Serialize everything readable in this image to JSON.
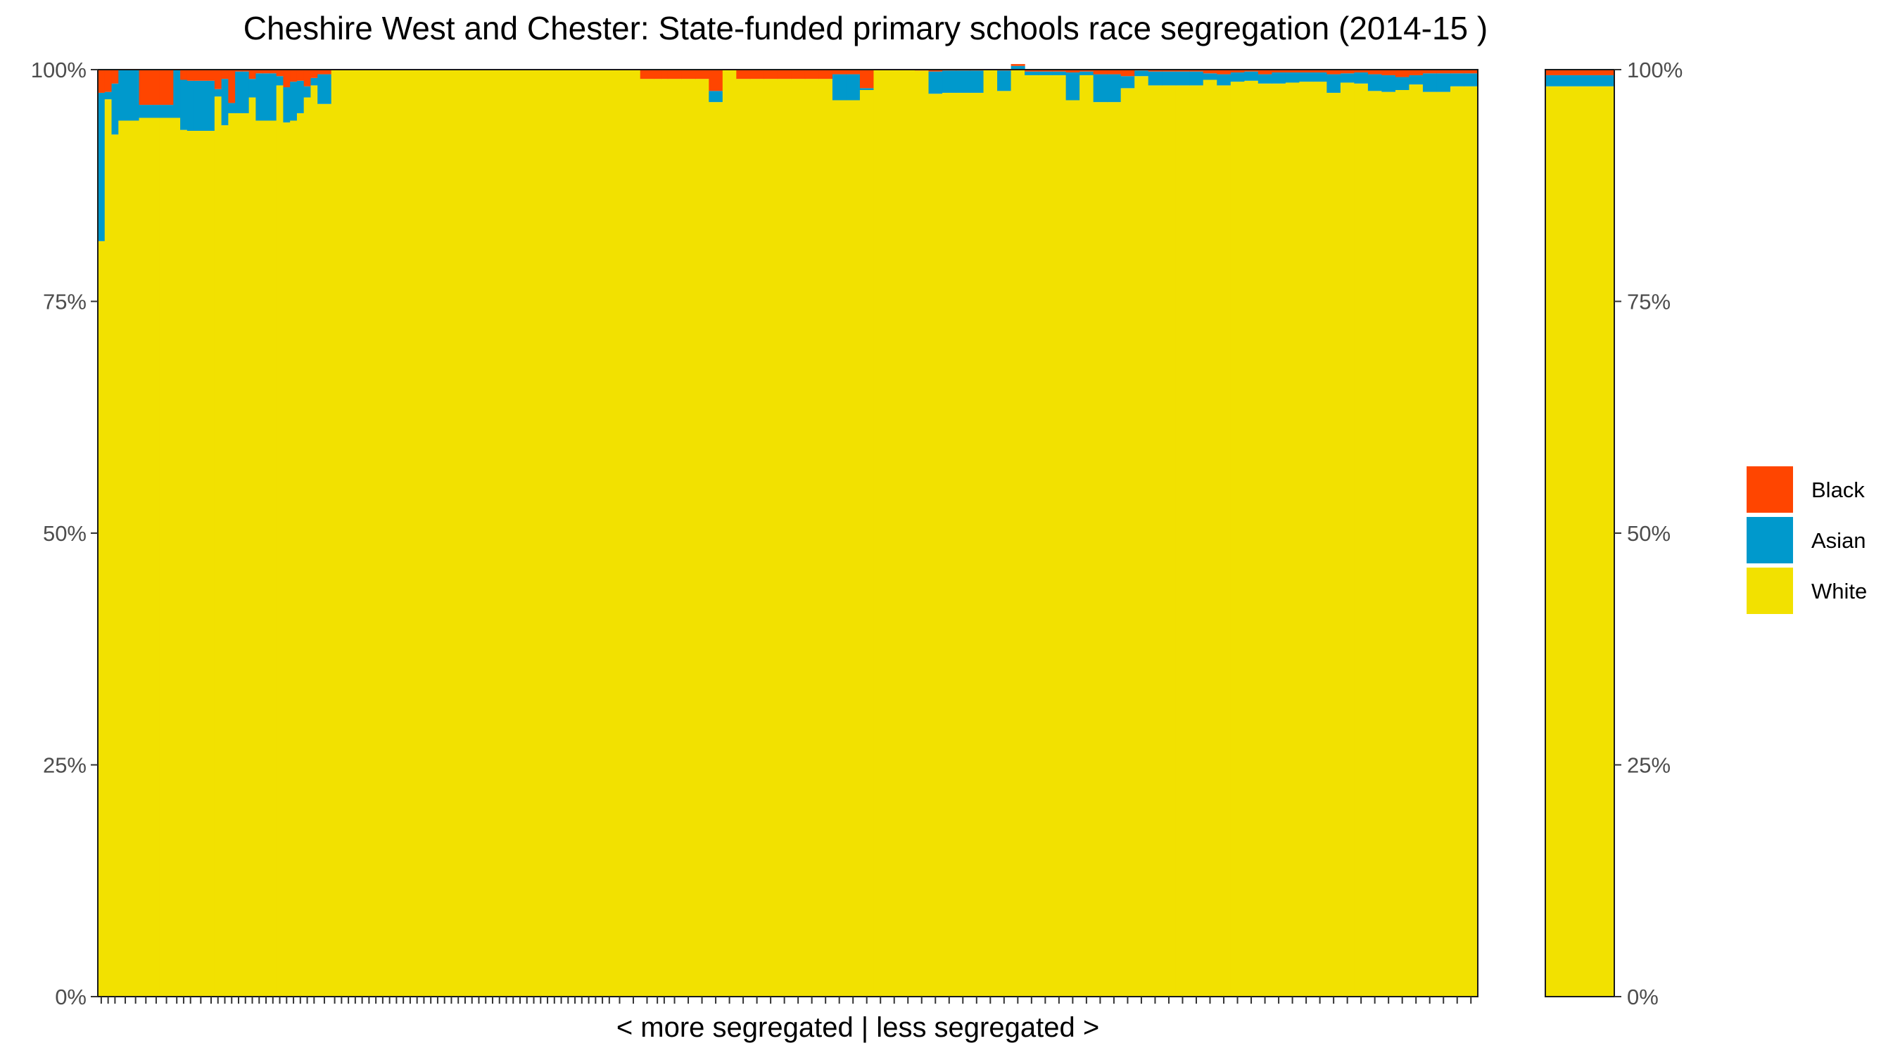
{
  "chart_data": {
    "type": "bar",
    "stacked": true,
    "title": "Cheshire West and Chester: State-funded primary schools race segregation (2014-15 )",
    "xlabel": "< more segregated | less segregated >",
    "ylabel": "",
    "ylim": [
      0,
      1
    ],
    "y_ticks": [
      "0%",
      "25%",
      "50%",
      "75%",
      "100%"
    ],
    "y_tick_values": [
      0,
      0.25,
      0.5,
      0.75,
      1.0
    ],
    "colors": {
      "Black": "#FF4500",
      "Asian": "#0099CC",
      "White": "#F2E100"
    },
    "legend": {
      "position": "right",
      "items": [
        "Black",
        "Asian",
        "White"
      ]
    },
    "stack_order_bottom_to_top": [
      "White",
      "Asian",
      "Black"
    ],
    "school_widths": [
      1,
      1,
      1,
      2,
      1,
      2,
      1,
      2,
      1,
      1,
      1,
      2,
      1,
      1,
      1,
      1,
      1,
      1,
      1,
      1,
      1,
      1,
      1,
      1,
      1,
      1,
      1,
      1,
      2,
      1,
      1,
      1,
      1,
      1,
      1,
      1,
      1,
      1,
      1,
      1,
      1,
      1,
      1,
      1,
      1,
      1,
      1,
      1,
      1,
      1,
      1,
      1,
      1,
      1,
      1,
      1,
      1,
      1,
      1,
      1,
      1,
      1,
      1,
      1,
      1,
      1,
      1,
      1,
      1,
      1,
      2,
      2,
      2,
      1,
      1,
      2,
      2,
      2,
      2,
      2,
      2,
      2,
      2,
      2,
      2,
      2,
      2,
      2,
      2,
      2,
      2,
      2,
      2,
      2,
      2,
      2,
      2,
      2,
      2,
      2,
      2,
      2,
      2,
      2,
      2,
      2,
      2,
      2,
      2,
      2,
      2,
      2,
      2,
      2,
      2,
      2,
      2,
      2,
      2,
      2,
      2,
      2,
      2,
      2,
      2,
      2,
      2,
      2,
      2,
      2,
      2,
      2,
      2,
      2
    ],
    "series": [
      {
        "name": "White",
        "values": [
          0.815,
          0.968,
          0.93,
          0.945,
          0.945,
          0.948,
          0.948,
          0.948,
          0.948,
          0.935,
          0.934,
          0.934,
          0.934,
          0.971,
          0.94,
          0.953,
          0.953,
          0.953,
          0.97,
          0.945,
          0.945,
          0.945,
          0.983,
          0.943,
          0.945,
          0.953,
          0.97,
          0.983,
          0.963,
          1,
          1,
          1,
          1,
          1,
          1,
          1,
          1,
          1,
          1,
          1,
          1,
          1,
          1,
          1,
          1,
          1,
          1,
          1,
          1,
          1,
          1,
          1,
          1,
          1,
          1,
          1,
          1,
          1,
          1,
          1,
          1,
          1,
          1,
          1,
          1,
          1,
          1,
          1,
          1,
          1,
          1,
          1,
          0.99,
          0.99,
          0.99,
          0.99,
          0.99,
          0.99,
          0.965,
          1,
          0.99,
          0.99,
          0.99,
          0.99,
          0.99,
          0.99,
          0.99,
          0.967,
          0.967,
          0.978,
          1,
          1,
          1,
          0.999,
          0.974,
          0.975,
          0.975,
          0.975,
          1,
          0.977,
          1,
          0.994,
          0.994,
          0.994,
          0.967,
          0.994,
          0.965,
          0.965,
          0.98,
          0.993,
          0.983,
          0.983,
          0.983,
          0.983,
          0.989,
          0.983,
          0.987,
          0.988,
          0.985,
          0.985,
          0.986,
          0.987,
          0.987,
          0.975,
          0.986,
          0.985,
          0.977,
          0.976,
          0.978,
          0.984,
          0.976,
          0.976,
          0.982,
          0.982,
          0.98,
          0.98
        ]
      },
      {
        "name": "Asian",
        "values": [
          0.16,
          0.008,
          0.055,
          0.055,
          0.055,
          0.014,
          0.014,
          0.014,
          0.052,
          0.054,
          0.054,
          0.054,
          0.054,
          0.008,
          0.05,
          0.011,
          0.045,
          0.045,
          0.02,
          0.051,
          0.051,
          0.051,
          0.01,
          0.038,
          0.042,
          0.035,
          0.012,
          0.008,
          0.032,
          0,
          0,
          0,
          0,
          0,
          0,
          0,
          0,
          0,
          0,
          0,
          0,
          0,
          0,
          0,
          0,
          0,
          0,
          0,
          0,
          0,
          0,
          0,
          0,
          0,
          0,
          0,
          0,
          0,
          0,
          0,
          0,
          0,
          0,
          0,
          0,
          0,
          0,
          0,
          0,
          0,
          0,
          0,
          0,
          0,
          0,
          0,
          0,
          0,
          0.012,
          0,
          0,
          0,
          0,
          0,
          0,
          0,
          0,
          0.028,
          0.028,
          0.002,
          0,
          0,
          0,
          0,
          0.024,
          0.024,
          0.024,
          0.024,
          0,
          0.022,
          0.004,
          0.004,
          0.004,
          0.004,
          0.03,
          0.004,
          0.03,
          0.03,
          0.013,
          0.006,
          0.015,
          0.015,
          0.015,
          0.015,
          0.007,
          0.012,
          0.01,
          0.01,
          0.01,
          0.012,
          0.011,
          0.01,
          0.01,
          0.02,
          0.01,
          0.012,
          0.018,
          0.018,
          0.014,
          0.01,
          0.02,
          0.02,
          0.014,
          0.014,
          0.014,
          0.014
        ]
      },
      {
        "name": "Black",
        "values": [
          0.025,
          0.024,
          0.015,
          0,
          0,
          0.038,
          0.038,
          0.038,
          0,
          0.011,
          0.012,
          0.012,
          0.012,
          0.021,
          0.01,
          0.036,
          0.002,
          0.002,
          0.01,
          0.004,
          0.004,
          0.004,
          0.007,
          0.019,
          0.013,
          0.012,
          0.018,
          0.009,
          0.005,
          0,
          0,
          0,
          0,
          0,
          0,
          0,
          0,
          0,
          0,
          0,
          0,
          0,
          0,
          0,
          0,
          0,
          0,
          0,
          0,
          0,
          0,
          0,
          0,
          0,
          0,
          0,
          0,
          0,
          0,
          0,
          0,
          0,
          0,
          0,
          0,
          0,
          0,
          0,
          0,
          0,
          0,
          0,
          0.01,
          0.01,
          0.01,
          0.01,
          0.01,
          0.01,
          0.023,
          0,
          0.01,
          0.01,
          0.01,
          0.01,
          0.01,
          0.01,
          0.01,
          0.005,
          0.005,
          0.02,
          0,
          0,
          0,
          0.001,
          0.002,
          0.001,
          0.001,
          0.001,
          0,
          0.001,
          0.002,
          0.002,
          0.002,
          0.002,
          0.003,
          0.002,
          0.005,
          0.005,
          0.007,
          0.001,
          0.002,
          0.002,
          0.002,
          0.002,
          0.004,
          0.005,
          0.003,
          0.002,
          0.005,
          0.003,
          0.003,
          0.003,
          0.003,
          0.005,
          0.004,
          0.003,
          0.005,
          0.006,
          0.008,
          0.006,
          0.004,
          0.004,
          0.004,
          0.004,
          0.006,
          0.006
        ]
      }
    ],
    "overall": {
      "White": 0.982,
      "Asian": 0.012,
      "Black": 0.006
    }
  }
}
